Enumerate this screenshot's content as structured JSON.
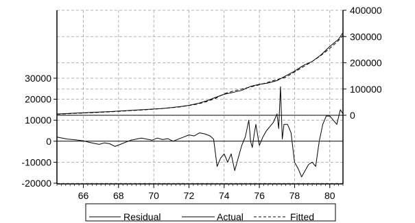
{
  "chart_data": {
    "type": "line",
    "title": "",
    "xlabel": "",
    "ylabel": "",
    "grid": true,
    "legend_position": "bottom",
    "x_axis": {
      "range": [
        64.5,
        80.75
      ],
      "ticks": [
        66,
        68,
        70,
        72,
        74,
        76,
        78,
        80
      ],
      "tick_labels": [
        "66",
        "68",
        "70",
        "72",
        "74",
        "76",
        "78",
        "80"
      ]
    },
    "left_axis": {
      "range": [
        -20000,
        30000
      ],
      "ticks": [
        -20000,
        -10000,
        0,
        10000,
        20000,
        30000
      ],
      "tick_labels": [
        "-20000",
        "-10000",
        "0",
        "10000",
        "20000",
        "30000"
      ]
    },
    "right_axis": {
      "range": [
        0,
        400000
      ],
      "ticks": [
        0,
        100000,
        200000,
        300000,
        400000
      ],
      "tick_labels": [
        "0",
        "100000",
        "200000",
        "300000",
        "400000"
      ]
    },
    "series": [
      {
        "name": "Residual",
        "axis": "left",
        "style": "solid",
        "color": "#000000",
        "x": [
          64.5,
          64.8,
          65.1,
          65.4,
          65.7,
          66.0,
          66.3,
          66.6,
          66.9,
          67.2,
          67.5,
          67.8,
          68.1,
          68.4,
          68.7,
          69.0,
          69.3,
          69.6,
          69.9,
          70.2,
          70.5,
          70.8,
          71.1,
          71.4,
          71.7,
          72.0,
          72.3,
          72.6,
          72.9,
          73.2,
          73.4,
          73.6,
          73.8,
          74.0,
          74.2,
          74.4,
          74.6,
          74.8,
          75.0,
          75.2,
          75.4,
          75.5,
          75.6,
          75.7,
          75.8,
          76.0,
          76.2,
          76.4,
          76.6,
          76.8,
          77.0,
          77.1,
          77.2,
          77.3,
          77.4,
          77.6,
          77.8,
          78.0,
          78.2,
          78.4,
          78.6,
          78.8,
          79.0,
          79.2,
          79.4,
          79.6,
          79.8,
          80.0,
          80.2,
          80.4,
          80.6,
          80.75
        ],
        "y": [
          2000,
          1500,
          1000,
          800,
          500,
          200,
          -500,
          -1000,
          -1500,
          -800,
          -1200,
          -2500,
          -1500,
          -500,
          500,
          1000,
          1500,
          1000,
          500,
          1500,
          800,
          1200,
          0,
          1000,
          2000,
          3000,
          2500,
          4000,
          3500,
          2500,
          1000,
          -12000,
          -8000,
          -6000,
          -10000,
          -6000,
          -14000,
          -8000,
          -2000,
          2000,
          10000,
          0,
          -3000,
          3000,
          8000,
          -2000,
          2000,
          5000,
          7000,
          9000,
          13000,
          6000,
          26000,
          1000,
          8000,
          8000,
          4000,
          -10000,
          -13000,
          -17000,
          -14000,
          -11000,
          -10000,
          -12000,
          0,
          8000,
          12000,
          12000,
          10000,
          8000,
          15000,
          13000
        ]
      },
      {
        "name": "Actual",
        "axis": "right",
        "style": "solid",
        "color": "#000000",
        "x": [
          64.5,
          65.5,
          66.5,
          67.5,
          68.5,
          69.5,
          70.5,
          71.5,
          72.0,
          72.5,
          73.0,
          73.5,
          74.0,
          74.5,
          75.0,
          75.5,
          76.0,
          76.5,
          77.0,
          77.5,
          78.0,
          78.5,
          79.0,
          79.5,
          80.0,
          80.5,
          80.75
        ],
        "y": [
          5000,
          8000,
          11000,
          14000,
          18000,
          22000,
          26000,
          33000,
          38000,
          45000,
          55000,
          68000,
          80000,
          87000,
          95000,
          110000,
          118000,
          123000,
          132000,
          150000,
          168000,
          190000,
          205000,
          230000,
          262000,
          290000,
          315000
        ]
      },
      {
        "name": "Fitted",
        "axis": "right",
        "style": "dashed",
        "color": "#000000",
        "x": [
          64.5,
          65.5,
          66.5,
          67.5,
          68.5,
          69.5,
          70.5,
          71.5,
          72.0,
          72.5,
          73.0,
          73.5,
          74.0,
          74.5,
          75.0,
          75.5,
          76.0,
          76.5,
          77.0,
          77.5,
          78.0,
          78.5,
          79.0,
          79.5,
          80.0,
          80.5,
          80.75
        ],
        "y": [
          4000,
          7000,
          10000,
          13000,
          17000,
          21000,
          26000,
          32000,
          37000,
          43000,
          52000,
          64000,
          82000,
          92000,
          100000,
          108000,
          116000,
          126000,
          136000,
          145000,
          165000,
          185000,
          205000,
          228000,
          255000,
          285000,
          305000
        ]
      }
    ]
  }
}
